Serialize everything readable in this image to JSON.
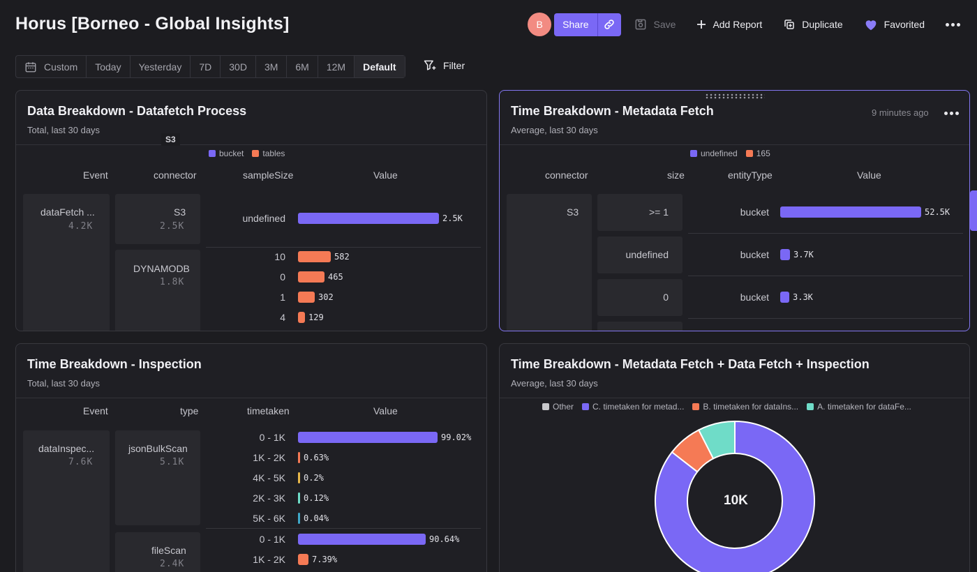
{
  "header": {
    "title": "Horus [Borneo - Global Insights]",
    "avatar_initial": "B",
    "share_label": "Share",
    "save_label": "Save",
    "add_report_label": "Add Report",
    "duplicate_label": "Duplicate",
    "favorited_label": "Favorited",
    "accent": "#7a68f5"
  },
  "date_range": {
    "options": [
      "Custom",
      "Today",
      "Yesterday",
      "7D",
      "30D",
      "3M",
      "6M",
      "12M",
      "Default"
    ],
    "selected": "Default"
  },
  "filter_label": "Filter",
  "panel1": {
    "title": "Data Breakdown - Datafetch Process",
    "subtitle": "Total, last 30 days",
    "tooltip": "S3",
    "legend": [
      {
        "label": "bucket",
        "color": "#7a68f5"
      },
      {
        "label": "tables",
        "color": "#f57a55"
      }
    ],
    "columns": [
      "Event",
      "connector",
      "sampleSize",
      "Value"
    ],
    "event": {
      "label": "dataFetch ...",
      "value": "4.2K"
    },
    "connectors": [
      {
        "label": "S3",
        "value": "2.5K"
      },
      {
        "label": "DYNAMODB",
        "value": "1.8K"
      }
    ],
    "rows": [
      {
        "label": "undefined",
        "value": 2500,
        "display": "2.5K",
        "color": "#7a68f5"
      },
      {
        "label": "10",
        "value": 582,
        "display": "582",
        "color": "#f57a55"
      },
      {
        "label": "0",
        "value": 465,
        "display": "465",
        "color": "#f57a55"
      },
      {
        "label": "1",
        "value": 302,
        "display": "302",
        "color": "#f57a55"
      },
      {
        "label": "4",
        "value": 129,
        "display": "129",
        "color": "#f57a55"
      }
    ]
  },
  "panel2": {
    "title": "Time Breakdown - Metadata Fetch",
    "subtitle": "Average, last 30 days",
    "time_ago": "9 minutes ago",
    "legend": [
      {
        "label": "undefined",
        "color": "#7a68f5"
      },
      {
        "label": "165",
        "color": "#f57a55"
      }
    ],
    "columns": [
      "connector",
      "size",
      "entityType",
      "Value"
    ],
    "connector": "S3",
    "rows": [
      {
        "size": ">= 1",
        "entity": "bucket",
        "value": 52500,
        "display": "52.5K"
      },
      {
        "size": "undefined",
        "entity": "bucket",
        "value": 3700,
        "display": "3.7K"
      },
      {
        "size": "0",
        "entity": "bucket",
        "value": 3300,
        "display": "3.3K"
      }
    ]
  },
  "panel3": {
    "title": "Time Breakdown - Inspection",
    "subtitle": "Total, last 30 days",
    "columns": [
      "Event",
      "type",
      "timetaken",
      "Value"
    ],
    "event": {
      "label": "dataInspec...",
      "value": "7.6K"
    },
    "types": [
      {
        "label": "jsonBulkScan",
        "value": "5.1K"
      },
      {
        "label": "fileScan",
        "value": "2.4K"
      }
    ],
    "rows": [
      {
        "label": "0 - 1K",
        "value": 99.02,
        "display": "99.02%",
        "color": "#7a68f5"
      },
      {
        "label": "1K - 2K",
        "value": 0.63,
        "display": "0.63%",
        "color": "#f57a55"
      },
      {
        "label": "4K - 5K",
        "value": 0.2,
        "display": "0.2%",
        "color": "#e8b84a"
      },
      {
        "label": "2K - 3K",
        "value": 0.12,
        "display": "0.12%",
        "color": "#6fdcc8"
      },
      {
        "label": "5K - 6K",
        "value": 0.04,
        "display": "0.04%",
        "color": "#3fa8c8"
      },
      {
        "label": "0 - 1K",
        "value": 90.64,
        "display": "90.64%",
        "color": "#7a68f5"
      },
      {
        "label": "1K - 2K",
        "value": 7.39,
        "display": "7.39%",
        "color": "#f57a55"
      }
    ]
  },
  "panel4": {
    "title": "Time Breakdown - Metadata Fetch + Data Fetch + Inspection",
    "subtitle": "Average, last 30 days",
    "legend": [
      {
        "label": "Other",
        "color": "#c8c8cc"
      },
      {
        "label": "C. timetaken for metad...",
        "color": "#7a68f5"
      },
      {
        "label": "B. timetaken for dataIns...",
        "color": "#f57a55"
      },
      {
        "label": "A. timetaken for dataFe...",
        "color": "#6fdcc8"
      }
    ],
    "center_label": "10K",
    "chart_data": {
      "type": "pie",
      "slices": [
        {
          "label": "C. timetaken for metad...",
          "value": 85.5,
          "color": "#7a68f5"
        },
        {
          "label": "B. timetaken for dataIns...",
          "value": 7.0,
          "color": "#f57a55"
        },
        {
          "label": "A. timetaken for dataFe...",
          "value": 7.5,
          "color": "#6fdcc8"
        }
      ],
      "total": "10K"
    }
  }
}
